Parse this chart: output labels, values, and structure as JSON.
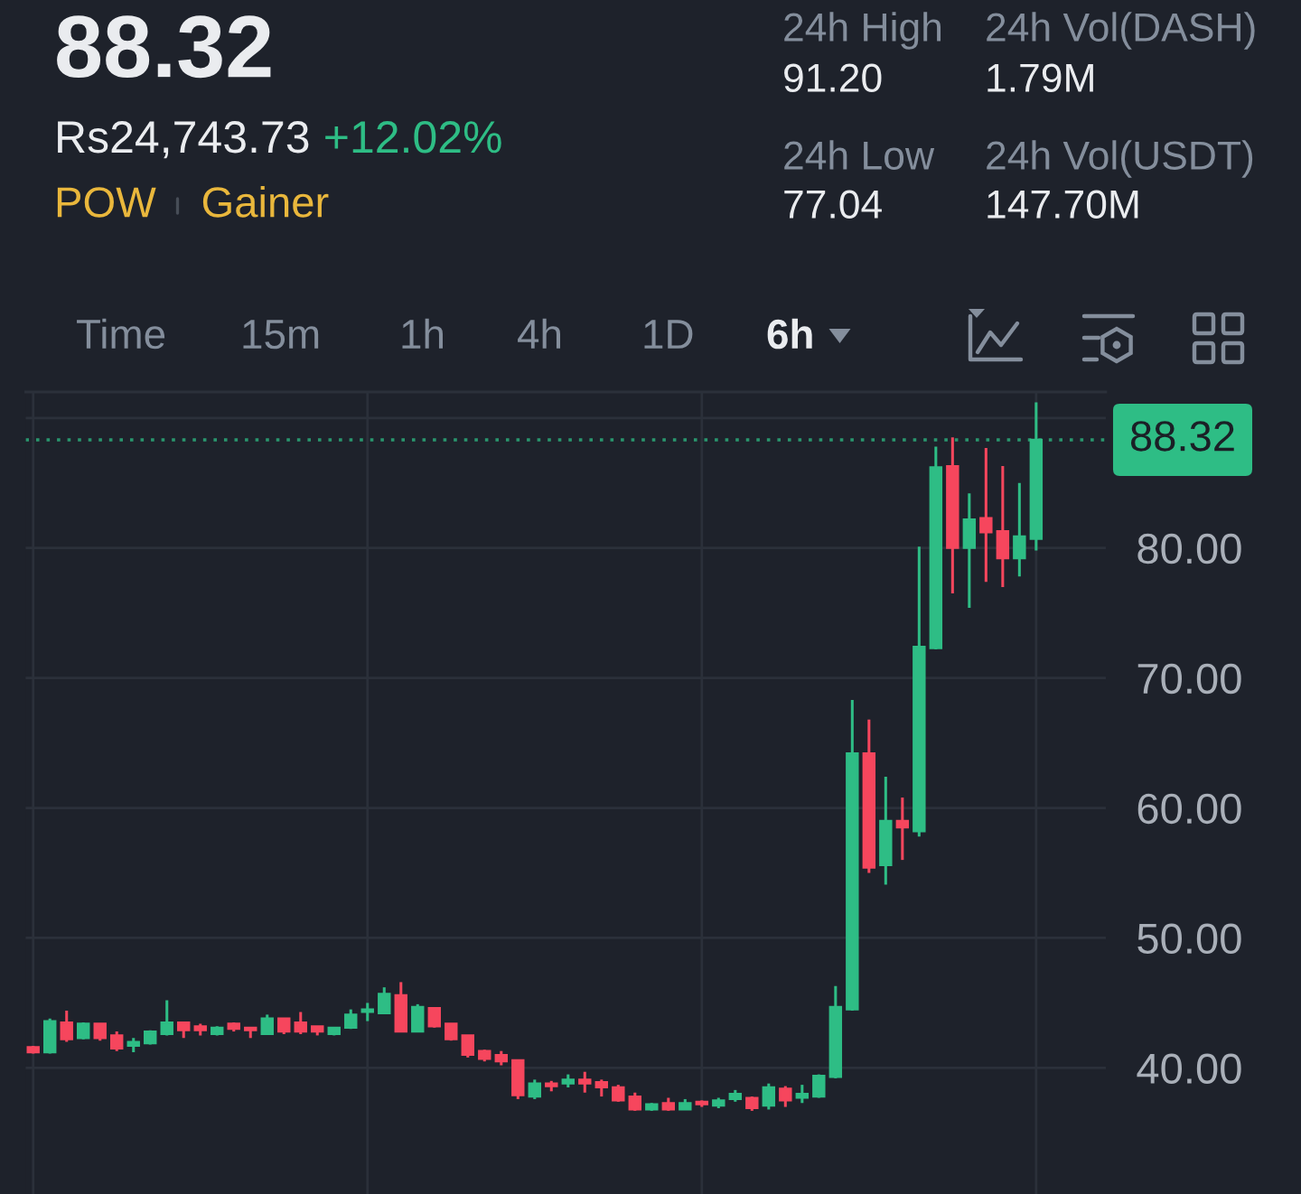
{
  "chart_data": {
    "type": "candlestick",
    "title": "88.32",
    "categories": [
      null,
      null,
      null,
      null,
      null,
      null,
      null,
      null,
      null,
      null,
      null,
      null,
      null,
      null,
      null,
      null,
      null,
      null,
      null,
      null,
      null,
      null,
      null,
      null,
      null,
      null,
      null,
      null,
      null,
      null,
      null,
      null,
      null,
      null,
      null,
      null,
      null,
      null,
      null,
      null,
      null,
      null,
      null,
      null,
      null,
      null,
      null,
      null,
      null,
      null,
      null,
      null,
      null,
      null,
      null,
      null,
      null,
      null,
      null,
      null,
      null
    ],
    "ohlc": [
      [
        41.6,
        41.7,
        41.1,
        41.2
      ],
      [
        41.2,
        43.8,
        41.1,
        43.6
      ],
      [
        43.5,
        44.4,
        42.0,
        42.2
      ],
      [
        42.3,
        43.5,
        42.2,
        43.4
      ],
      [
        43.4,
        43.4,
        42.1,
        42.3
      ],
      [
        42.5,
        42.8,
        41.3,
        41.5
      ],
      [
        41.7,
        42.3,
        41.2,
        42.0
      ],
      [
        41.9,
        42.9,
        41.8,
        42.8
      ],
      [
        42.6,
        45.2,
        42.5,
        43.5
      ],
      [
        43.5,
        43.5,
        42.3,
        42.9
      ],
      [
        43.2,
        43.4,
        42.5,
        42.9
      ],
      [
        42.6,
        43.2,
        42.5,
        43.1
      ],
      [
        43.4,
        43.5,
        42.8,
        43.0
      ],
      [
        43.1,
        43.1,
        42.3,
        42.9
      ],
      [
        42.6,
        44.1,
        42.6,
        43.8
      ],
      [
        43.8,
        43.8,
        42.6,
        42.8
      ],
      [
        43.5,
        44.3,
        42.6,
        42.8
      ],
      [
        43.2,
        43.2,
        42.5,
        42.8
      ],
      [
        42.6,
        43.1,
        42.5,
        43.1
      ],
      [
        43.1,
        44.5,
        43.0,
        44.1
      ],
      [
        44.3,
        45.0,
        43.6,
        44.5
      ],
      [
        44.2,
        46.2,
        44.2,
        45.7
      ],
      [
        45.6,
        46.6,
        42.8,
        42.8
      ],
      [
        42.8,
        44.9,
        42.8,
        44.7
      ],
      [
        44.6,
        44.6,
        43.1,
        43.2
      ],
      [
        43.4,
        43.4,
        42.1,
        42.2
      ],
      [
        42.5,
        42.5,
        40.8,
        41.0
      ],
      [
        41.3,
        41.4,
        40.5,
        40.7
      ],
      [
        41.0,
        41.3,
        40.2,
        40.5
      ],
      [
        40.6,
        40.6,
        37.6,
        37.9
      ],
      [
        37.8,
        39.1,
        37.6,
        38.8
      ],
      [
        38.8,
        39.0,
        38.2,
        38.6
      ],
      [
        38.8,
        39.5,
        38.5,
        39.1
      ],
      [
        39.1,
        39.7,
        38.1,
        38.8
      ],
      [
        38.9,
        39.1,
        37.8,
        38.5
      ],
      [
        38.5,
        38.7,
        37.4,
        37.5
      ],
      [
        37.8,
        38.1,
        36.7,
        36.8
      ],
      [
        36.8,
        37.3,
        36.7,
        37.2
      ],
      [
        37.3,
        37.7,
        36.7,
        36.8
      ],
      [
        36.8,
        37.6,
        36.8,
        37.3
      ],
      [
        37.4,
        37.5,
        37.0,
        37.2
      ],
      [
        37.1,
        37.7,
        36.9,
        37.5
      ],
      [
        37.6,
        38.3,
        37.4,
        38.0
      ],
      [
        37.7,
        37.8,
        36.7,
        36.9
      ],
      [
        37.1,
        38.8,
        36.8,
        38.5
      ],
      [
        38.4,
        38.6,
        37.0,
        37.5
      ],
      [
        37.7,
        38.7,
        37.3,
        38.0
      ],
      [
        37.8,
        39.5,
        37.7,
        39.4
      ],
      [
        39.3,
        46.3,
        39.2,
        44.7
      ],
      [
        44.5,
        68.3,
        44.4,
        64.2
      ],
      [
        64.2,
        66.8,
        55.0,
        55.4
      ],
      [
        55.6,
        62.4,
        54.1,
        59.0
      ],
      [
        59.0,
        60.8,
        56.0,
        58.5
      ],
      [
        58.2,
        80.1,
        57.8,
        72.4
      ],
      [
        72.3,
        87.8,
        72.2,
        86.2
      ],
      [
        86.3,
        88.5,
        76.5,
        80.0
      ],
      [
        80.0,
        84.2,
        75.4,
        82.2
      ],
      [
        82.3,
        87.7,
        77.4,
        81.2
      ],
      [
        81.3,
        86.3,
        77.0,
        79.2
      ],
      [
        79.2,
        85.0,
        77.8,
        80.9
      ],
      [
        80.7,
        91.2,
        79.8,
        88.32
      ]
    ],
    "colors": [
      "#f6465d",
      "#2ebd85",
      "#f6465d",
      "#2ebd85",
      "#f6465d",
      "#f6465d",
      "#2ebd85",
      "#2ebd85",
      "#2ebd85",
      "#f6465d",
      "#f6465d",
      "#2ebd85",
      "#f6465d",
      "#f6465d",
      "#2ebd85",
      "#f6465d",
      "#f6465d",
      "#f6465d",
      "#2ebd85",
      "#2ebd85",
      "#2ebd85",
      "#2ebd85",
      "#f6465d",
      "#2ebd85",
      "#f6465d",
      "#f6465d",
      "#f6465d",
      "#f6465d",
      "#f6465d",
      "#f6465d",
      "#2ebd85",
      "#f6465d",
      "#2ebd85",
      "#f6465d",
      "#f6465d",
      "#f6465d",
      "#f6465d",
      "#2ebd85",
      "#f6465d",
      "#2ebd85",
      "#f6465d",
      "#2ebd85",
      "#2ebd85",
      "#f6465d",
      "#2ebd85",
      "#f6465d",
      "#2ebd85",
      "#2ebd85",
      "#2ebd85",
      "#2ebd85",
      "#f6465d",
      "#2ebd85",
      "#f6465d",
      "#2ebd85",
      "#2ebd85",
      "#f6465d",
      "#2ebd85",
      "#f6465d",
      "#f6465d",
      "#2ebd85",
      "#2ebd85"
    ],
    "ylim": [
      30.3,
      92.0
    ],
    "yticks": [
      {
        "value": 40,
        "label": "40.00"
      },
      {
        "value": 50,
        "label": "50.00"
      },
      {
        "value": 60,
        "label": "60.00"
      },
      {
        "value": 70,
        "label": "70.00"
      },
      {
        "value": 80,
        "label": "80.00"
      },
      {
        "value": 90,
        "label": null
      }
    ],
    "grid": true,
    "tick_labels": "y",
    "ref_lines": [
      {
        "axis": "y",
        "value": 88.32,
        "label": "88.32",
        "color": "#2ebd85",
        "line_style": "dotted"
      }
    ],
    "annotations": [
      "Rs24,743.73",
      "+12.02%",
      "POW",
      "Gainer",
      "24h High",
      "91.20",
      "24h Vol(DASH)",
      "1.79M",
      "24h Low",
      "77.04",
      "24h Vol(USDT)",
      "147.70M",
      "Time",
      "15m",
      "1h",
      "4h",
      "1D",
      "6h"
    ]
  }
}
